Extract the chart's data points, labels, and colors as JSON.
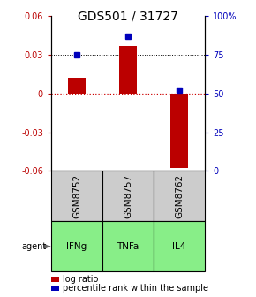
{
  "title": "GDS501 / 31727",
  "categories": [
    "GSM8752",
    "GSM8757",
    "GSM8762"
  ],
  "agents": [
    "IFNg",
    "TNFa",
    "IL4"
  ],
  "log_ratios": [
    0.012,
    0.037,
    -0.058
  ],
  "percentile_ranks": [
    75,
    87,
    52
  ],
  "ylim": [
    -0.06,
    0.06
  ],
  "left_yticks": [
    -0.06,
    -0.03,
    0.0,
    0.03,
    0.06
  ],
  "left_yticklabels": [
    "-0.06",
    "-0.03",
    "0",
    "0.03",
    "0.06"
  ],
  "right_yticks": [
    0,
    25,
    50,
    75,
    100
  ],
  "right_yticklabels": [
    "0",
    "25",
    "50",
    "75",
    "100%"
  ],
  "bar_color": "#bb0000",
  "marker_color": "#0000bb",
  "zero_line_color": "#cc0000",
  "gsm_row_color": "#cccccc",
  "agent_row_color": "#88ee88",
  "title_fontsize": 10,
  "tick_fontsize": 7,
  "legend_fontsize": 7,
  "table_fontsize": 7.5,
  "agent_label_fontsize": 7,
  "bar_width": 0.35
}
